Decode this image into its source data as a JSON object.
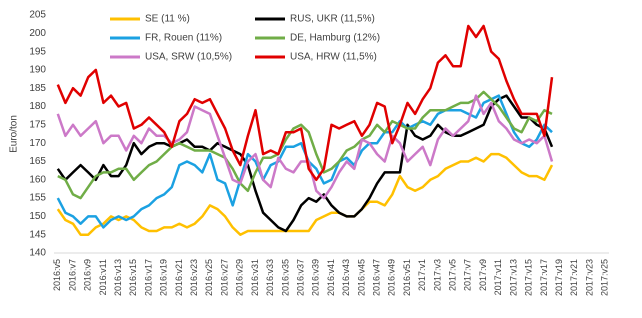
{
  "chart_data": {
    "type": "line",
    "y_label": "Euro/ton",
    "categories": [
      "2016:v5",
      null,
      "2016:v7",
      null,
      "2016:v9",
      null,
      "2016:v11",
      null,
      "2016:v13",
      null,
      "2016:v15",
      null,
      "2016:v17",
      null,
      "2016:v19",
      null,
      "2016:v21",
      null,
      "2016:v23",
      null,
      "2016:v25",
      null,
      "2016:v27",
      null,
      "2016:v29",
      null,
      "2016:v31",
      null,
      "2016:v33",
      null,
      "2016:v35",
      null,
      "2016:v37",
      null,
      "2016:v39",
      null,
      "2016:v41",
      null,
      "2016:v43",
      null,
      "2016:v45",
      null,
      "2016:v47",
      null,
      "2016:v49",
      null,
      "2016:v51",
      null,
      "2017:v1",
      null,
      "2017:v3",
      null,
      "2017:v5",
      null,
      "2017:v7",
      null,
      "2017:v9",
      null,
      "2017:v11",
      null,
      "2017:v13",
      null,
      "2017:v15",
      null,
      "2017:v17",
      null,
      "2017:v19",
      null,
      "2017:v21",
      null,
      "2017:v23",
      null,
      "2017:v25"
    ],
    "ylim": [
      140,
      205
    ],
    "yticks": [
      140,
      145,
      150,
      155,
      160,
      165,
      170,
      175,
      180,
      185,
      190,
      195,
      200,
      205
    ],
    "grid": false,
    "legend": "top",
    "series": [
      {
        "name": "SE (11 %)",
        "color": "#ffc000",
        "values": [
          152,
          149,
          148,
          145,
          145,
          147,
          148,
          150,
          149,
          150,
          149,
          147,
          146,
          146,
          147,
          147,
          148,
          147,
          148,
          150,
          153,
          152,
          150,
          147,
          145,
          146,
          146,
          146,
          146,
          146,
          146,
          146,
          146,
          146,
          149,
          150,
          151,
          151,
          150,
          150,
          152,
          154,
          154,
          153,
          156,
          161,
          158,
          157,
          158,
          160,
          161,
          163,
          164,
          165,
          165,
          166,
          165,
          167,
          167,
          166,
          164,
          162,
          161,
          161,
          160,
          164,
          null,
          null,
          null,
          null,
          null,
          null,
          null
        ]
      },
      {
        "name": "RUS, UKR (11,5%)",
        "color": "#000000",
        "values": [
          163,
          160,
          162,
          164,
          162,
          160,
          164,
          161,
          161,
          164,
          170,
          167,
          169,
          170,
          170,
          169,
          170,
          171,
          169,
          169,
          168,
          170,
          169,
          168,
          167,
          164,
          157,
          151,
          149,
          147,
          146,
          149,
          153,
          155,
          154,
          156,
          153,
          151,
          150,
          150,
          152,
          155,
          159,
          162,
          162,
          162,
          175,
          172,
          171,
          172,
          175,
          173,
          172,
          172,
          173,
          174,
          175,
          180,
          182,
          183,
          180,
          177,
          177,
          175,
          174,
          169,
          null,
          null,
          null,
          null,
          null,
          null,
          null
        ]
      },
      {
        "name": "FR, Rouen (11%)",
        "color": "#1ba1e2",
        "values": [
          155,
          151,
          150,
          148,
          150,
          150,
          147,
          149,
          150,
          149,
          150,
          152,
          153,
          155,
          156,
          158,
          164,
          165,
          164,
          162,
          167,
          160,
          159,
          153,
          160,
          167,
          165,
          160,
          164,
          165,
          169,
          169,
          170,
          165,
          163,
          159,
          160,
          165,
          166,
          164,
          168,
          170,
          170,
          173,
          173,
          176,
          174,
          175,
          176,
          175,
          178,
          179,
          179,
          179,
          178,
          177,
          181,
          182,
          183,
          178,
          173,
          170,
          169,
          171,
          175,
          173,
          null,
          null,
          null,
          null,
          null,
          null,
          null
        ]
      },
      {
        "name": "DE, Hamburg (12%)",
        "color": "#70ad47",
        "values": [
          161,
          160,
          156,
          155,
          158,
          161,
          162,
          162,
          163,
          163,
          160,
          162,
          164,
          165,
          167,
          169,
          170,
          169,
          168,
          168,
          168,
          167,
          166,
          163,
          159,
          157,
          162,
          166,
          166,
          167,
          171,
          174,
          175,
          173,
          167,
          162,
          163,
          165,
          168,
          169,
          171,
          172,
          175,
          173,
          176,
          175,
          174,
          174,
          177,
          179,
          179,
          179,
          180,
          181,
          181,
          182,
          184,
          182,
          180,
          177,
          174,
          173,
          177,
          176,
          179,
          178,
          null,
          null,
          null,
          null,
          null,
          null,
          null
        ]
      },
      {
        "name": "USA, SRW (10,5%)",
        "color": "#cc79c8",
        "values": [
          178,
          172,
          175,
          172,
          174,
          176,
          170,
          172,
          172,
          168,
          172,
          170,
          174,
          172,
          172,
          170,
          171,
          173,
          180,
          179,
          178,
          172,
          166,
          160,
          159,
          165,
          167,
          160,
          158,
          166,
          163,
          162,
          165,
          165,
          157,
          155,
          158,
          162,
          165,
          163,
          171,
          170,
          167,
          165,
          172,
          170,
          165,
          167,
          169,
          164,
          171,
          174,
          172,
          174,
          176,
          183,
          178,
          181,
          176,
          174,
          171,
          170,
          171,
          170,
          172,
          165,
          null,
          null,
          null,
          null,
          null,
          null,
          null
        ]
      },
      {
        "name": "USA, HRW (11,5%)",
        "color": "#e00000",
        "values": [
          186,
          181,
          185,
          183,
          188,
          190,
          181,
          183,
          180,
          181,
          174,
          175,
          177,
          175,
          173,
          169,
          176,
          178,
          182,
          181,
          182,
          178,
          174,
          168,
          164,
          172,
          179,
          167,
          168,
          167,
          173,
          173,
          174,
          163,
          160,
          163,
          175,
          174,
          175,
          176,
          172,
          175,
          181,
          180,
          170,
          175,
          181,
          178,
          182,
          185,
          192,
          194,
          191,
          191,
          202,
          199,
          202,
          195,
          193,
          187,
          182,
          178,
          178,
          178,
          172,
          188,
          null,
          null,
          null,
          null,
          null,
          null,
          null
        ]
      }
    ]
  }
}
